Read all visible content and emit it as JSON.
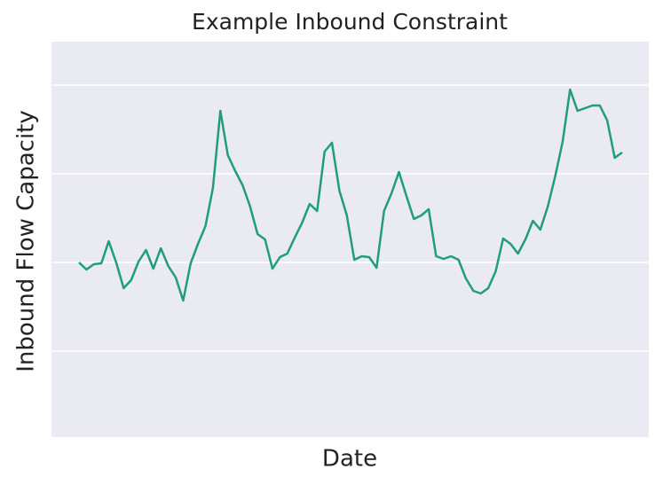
{
  "chart_data": {
    "type": "line",
    "title": "Example Inbound Constraint",
    "x_label": "Date",
    "y_label": "Inbound Flow Capacity",
    "values": [
      2.0,
      1.92,
      1.98,
      1.99,
      2.24,
      2.0,
      1.71,
      1.8,
      2.01,
      2.14,
      1.93,
      2.16,
      1.96,
      1.83,
      1.57,
      1.99,
      2.21,
      2.41,
      2.84,
      3.71,
      3.21,
      3.03,
      2.87,
      2.63,
      2.32,
      2.26,
      1.93,
      2.06,
      2.1,
      2.28,
      2.45,
      2.66,
      2.58,
      3.25,
      3.35,
      2.81,
      2.53,
      2.03,
      2.07,
      2.06,
      1.94,
      2.58,
      2.78,
      3.02,
      2.75,
      2.49,
      2.53,
      2.6,
      2.07,
      2.04,
      2.07,
      2.03,
      1.82,
      1.68,
      1.65,
      1.71,
      1.9,
      2.27,
      2.21,
      2.1,
      2.26,
      2.47,
      2.37,
      2.63,
      2.97,
      3.36,
      3.95,
      3.71,
      3.74,
      3.77,
      3.77,
      3.6,
      3.18,
      3.24
    ],
    "color": "#1f9e77",
    "ylim": [
      0.03,
      4.49
    ],
    "yticks": [
      1,
      2,
      3,
      4
    ],
    "grid": true
  }
}
